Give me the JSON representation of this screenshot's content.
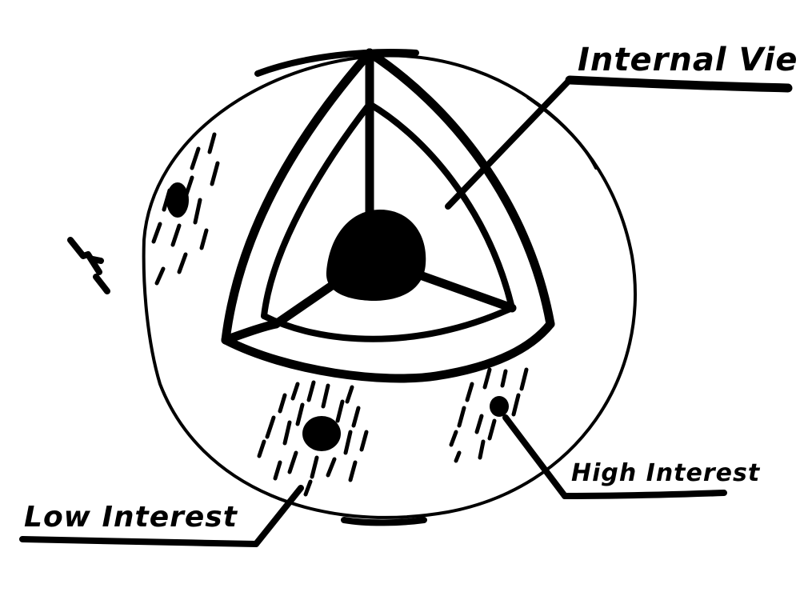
{
  "labels": {
    "internal_view": "Internal View",
    "high_interest": "High Interest",
    "low_interest": "Low Interest"
  },
  "colors": {
    "ink": "#000000",
    "paper": "#ffffff"
  }
}
